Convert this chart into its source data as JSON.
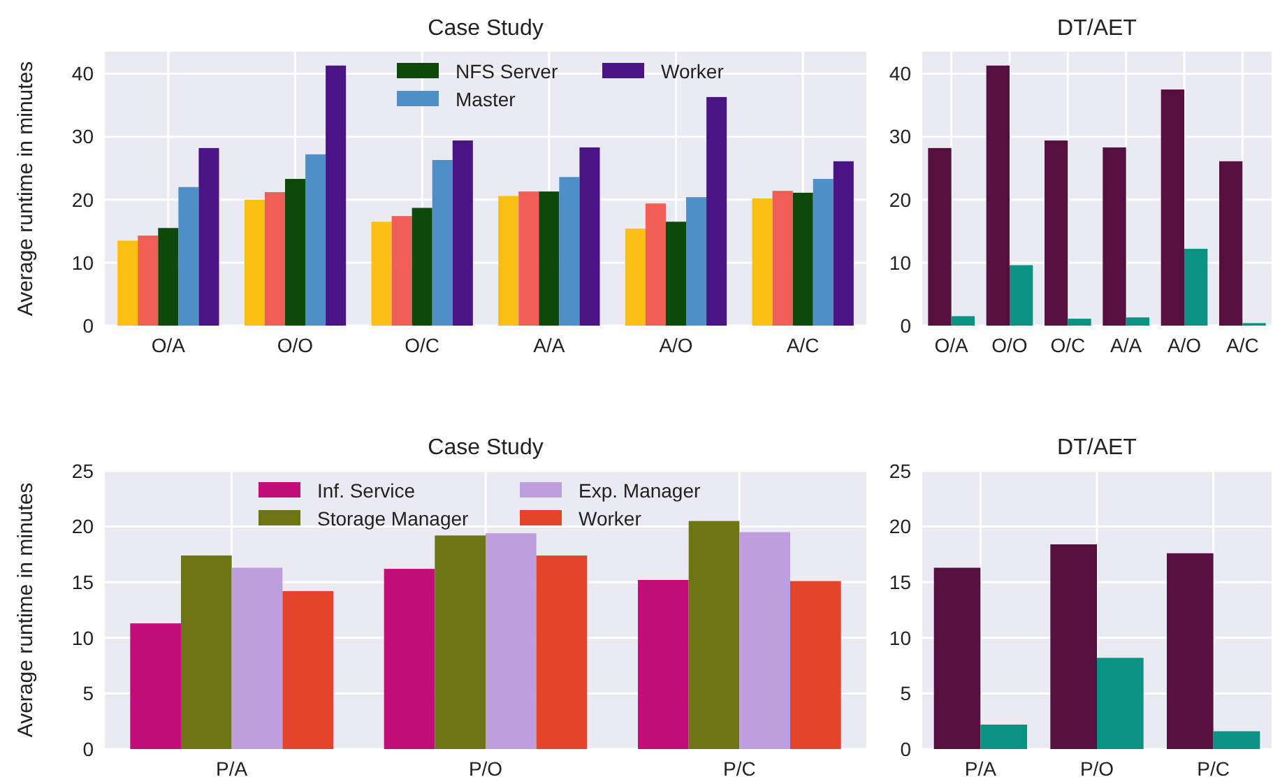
{
  "chart_data": [
    {
      "type": "bar",
      "title": "Case Study",
      "ylabel": "Average runtime in minutes",
      "categories": [
        "O/A",
        "O/O",
        "O/C",
        "A/A",
        "A/O",
        "A/C"
      ],
      "ylim": [
        0,
        43.5
      ],
      "yticks": [
        0,
        10,
        20,
        30,
        40
      ],
      "grid": true,
      "legend": "top",
      "series": [
        {
          "color": "#f9c013",
          "values": [
            13.5,
            20,
            16.5,
            20.6,
            15.4,
            20.2
          ]
        },
        {
          "color": "#f05f55",
          "values": [
            14.3,
            21.2,
            17.4,
            21.3,
            19.4,
            21.4
          ]
        },
        {
          "name": "NFS Server",
          "color": "#0b4a0b",
          "values": [
            15.5,
            23.3,
            18.7,
            21.3,
            16.5,
            21.1
          ]
        },
        {
          "name": "Master",
          "color": "#4f8fc8",
          "values": [
            22,
            27.2,
            26.3,
            23.6,
            20.4,
            23.3
          ]
        },
        {
          "name": "Worker",
          "color": "#4a1486",
          "values": [
            28.2,
            41.3,
            29.4,
            28.3,
            36.3,
            26.1
          ]
        }
      ]
    },
    {
      "type": "bar",
      "title": "DT/AET",
      "categories": [
        "O/A",
        "O/O",
        "O/C",
        "A/A",
        "A/O",
        "A/C"
      ],
      "ylim": [
        0,
        43.5
      ],
      "yticks": [
        0,
        10,
        20,
        30,
        40
      ],
      "grid": true,
      "series": [
        {
          "color": "#560f3f",
          "values": [
            28.2,
            41.3,
            29.4,
            28.3,
            37.5,
            26.1
          ]
        },
        {
          "color": "#0a9382",
          "values": [
            1.5,
            9.6,
            1.1,
            1.3,
            12.2,
            0.4
          ]
        }
      ]
    },
    {
      "type": "bar",
      "title": "Case Study",
      "ylabel": "Average runtime in minutes",
      "categories": [
        "P/A",
        "P/O",
        "P/C"
      ],
      "ylim": [
        0,
        25
      ],
      "yticks": [
        0,
        5,
        10,
        15,
        20,
        25
      ],
      "grid": true,
      "legend": "top",
      "series": [
        {
          "name": "Inf. Service",
          "color": "#c20e78",
          "values": [
            11.3,
            16.2,
            15.2
          ]
        },
        {
          "name": "Storage Manager",
          "color": "#6e7513",
          "values": [
            17.4,
            19.2,
            20.5
          ]
        },
        {
          "name": "Exp. Manager",
          "color": "#bf9ee0",
          "values": [
            16.3,
            19.4,
            19.5
          ]
        },
        {
          "name": "Worker",
          "color": "#e5432a",
          "values": [
            14.2,
            17.4,
            15.1
          ]
        }
      ]
    },
    {
      "type": "bar",
      "title": "DT/AET",
      "categories": [
        "P/A",
        "P/O",
        "P/C"
      ],
      "ylim": [
        0,
        25
      ],
      "yticks": [
        0,
        5,
        10,
        15,
        20,
        25
      ],
      "grid": true,
      "series": [
        {
          "color": "#560f3f",
          "values": [
            16.3,
            18.4,
            17.6
          ]
        },
        {
          "color": "#0a9382",
          "values": [
            2.2,
            8.2,
            1.6
          ]
        }
      ]
    }
  ]
}
